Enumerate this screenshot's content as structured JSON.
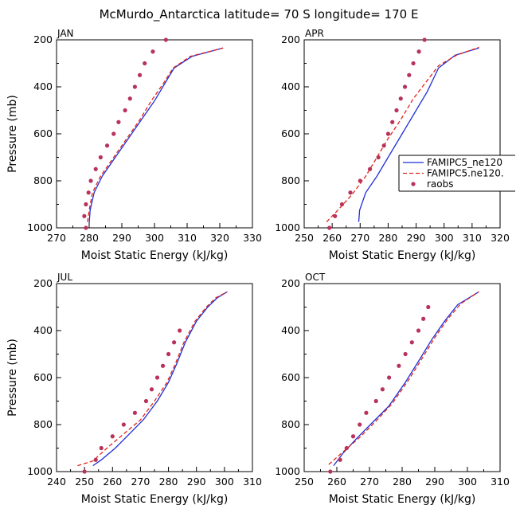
{
  "figure": {
    "title": "McMurdo_Antarctica  latitude= 70 S longitude= 170 E"
  },
  "legend": {
    "entries": [
      {
        "label": "FAMIPC5_ne120",
        "style": "solid",
        "color": "#1f2fd6"
      },
      {
        "label": "FAMIPC5.ne120.",
        "style": "dashed",
        "color": "#e0241c"
      },
      {
        "label": "raobs",
        "style": "marker",
        "color": "#b8325a"
      }
    ]
  },
  "chart_data": [
    {
      "type": "line",
      "month": "JAN",
      "xlabel": "Moist Static Energy (kJ/kg)",
      "ylabel": "Pressure (mb)",
      "xlim": [
        270,
        330
      ],
      "ylim": [
        1000,
        200
      ],
      "xticks": [
        270,
        280,
        290,
        300,
        310,
        320,
        330
      ],
      "yticks": [
        200,
        400,
        600,
        800,
        1000
      ],
      "series": [
        {
          "name": "FAMIPC5_ne120",
          "style": "solid",
          "color": "#1f2fd6",
          "x": [
            280.0,
            280.3,
            281.5,
            284.0,
            288.0,
            292.0,
            296.0,
            300.0,
            303.0,
            306.0,
            311.5,
            321.0
          ],
          "y": [
            980,
            925,
            850,
            780,
            700,
            620,
            540,
            460,
            390,
            320,
            270,
            235
          ]
        },
        {
          "name": "FAMIPC5.ne120.",
          "style": "dashed",
          "color": "#e0241c",
          "x": [
            279.5,
            280.0,
            281.0,
            283.5,
            287.5,
            291.5,
            295.5,
            299.0,
            302.5,
            305.7,
            311.0,
            321.0
          ],
          "y": [
            975,
            925,
            850,
            780,
            700,
            620,
            540,
            460,
            390,
            320,
            270,
            235
          ]
        },
        {
          "name": "raobs",
          "style": "marker",
          "color": "#b8325a",
          "x": [
            279.0,
            278.5,
            279.0,
            279.8,
            280.5,
            282.0,
            283.5,
            285.5,
            287.5,
            289.0,
            291.0,
            292.5,
            294.0,
            295.5,
            297.0,
            299.5,
            303.5
          ],
          "y": [
            1000,
            950,
            900,
            850,
            800,
            750,
            700,
            650,
            600,
            550,
            500,
            450,
            400,
            350,
            300,
            250,
            200
          ]
        }
      ]
    },
    {
      "type": "line",
      "month": "APR",
      "xlabel": "Moist Static Energy (kJ/kg)",
      "ylabel": "",
      "xlim": [
        250,
        320
      ],
      "ylim": [
        1000,
        200
      ],
      "xticks": [
        250,
        260,
        270,
        280,
        290,
        300,
        310,
        320
      ],
      "yticks": [
        200,
        400,
        600,
        800,
        1000
      ],
      "series": [
        {
          "name": "FAMIPC5_ne120",
          "style": "solid",
          "color": "#1f2fd6",
          "x": [
            269.5,
            269.8,
            272.0,
            276.0,
            280.0,
            285.0,
            290.0,
            294.0,
            298.0,
            304.0,
            312.5
          ],
          "y": [
            975,
            925,
            850,
            780,
            700,
            600,
            500,
            420,
            320,
            265,
            235
          ]
        },
        {
          "name": "FAMIPC5.ne120.",
          "style": "dashed",
          "color": "#e0241c",
          "x": [
            258.0,
            262.0,
            267.0,
            272.0,
            276.0,
            280.0,
            284.5,
            289.0,
            293.5,
            298.0,
            304.5,
            312.5
          ],
          "y": [
            975,
            925,
            860,
            780,
            700,
            620,
            540,
            450,
            380,
            310,
            265,
            232
          ]
        },
        {
          "name": "raobs",
          "style": "marker",
          "color": "#b8325a",
          "x": [
            259.0,
            261.0,
            263.5,
            266.5,
            270.0,
            273.5,
            276.5,
            278.5,
            280.0,
            281.5,
            283.0,
            284.5,
            286.0,
            287.5,
            289.0,
            291.0,
            293.0
          ],
          "y": [
            1000,
            950,
            900,
            850,
            800,
            750,
            700,
            650,
            600,
            550,
            500,
            450,
            400,
            350,
            300,
            250,
            200
          ]
        }
      ]
    },
    {
      "type": "line",
      "month": "JUL",
      "xlabel": "Moist Static Energy (kJ/kg)",
      "ylabel": "Pressure (mb)",
      "xlim": [
        240,
        310
      ],
      "ylim": [
        1000,
        200
      ],
      "xticks": [
        240,
        250,
        260,
        270,
        280,
        290,
        300,
        310
      ],
      "yticks": [
        200,
        400,
        600,
        800,
        1000
      ],
      "series": [
        {
          "name": "FAMIPC5_ne120",
          "style": "solid",
          "color": "#1f2fd6",
          "x": [
            253.0,
            256.0,
            261.0,
            266.0,
            271.0,
            276.0,
            280.0,
            283.0,
            286.0,
            290.0,
            294.0,
            297.5,
            301.0
          ],
          "y": [
            975,
            950,
            900,
            840,
            780,
            700,
            620,
            540,
            450,
            360,
            300,
            260,
            235
          ]
        },
        {
          "name": "FAMIPC5.ne120.",
          "style": "dashed",
          "color": "#e0241c",
          "x": [
            247.5,
            253.0,
            258.0,
            264.0,
            270.0,
            275.0,
            279.5,
            282.5,
            285.5,
            289.5,
            293.5,
            297.0,
            301.0
          ],
          "y": [
            975,
            955,
            900,
            840,
            780,
            700,
            620,
            540,
            450,
            360,
            300,
            260,
            235
          ]
        },
        {
          "name": "raobs",
          "style": "marker",
          "color": "#b8325a",
          "x": [
            250.0,
            254.0,
            256.0,
            260.0,
            264.0,
            268.0,
            272.0,
            274.0,
            276.0,
            278.0,
            280.0,
            282.0,
            284.0
          ],
          "y": [
            1000,
            950,
            900,
            850,
            800,
            750,
            700,
            650,
            600,
            550,
            500,
            450,
            400
          ]
        }
      ]
    },
    {
      "type": "line",
      "month": "OCT",
      "xlabel": "Moist Static Energy (kJ/kg)",
      "ylabel": "",
      "xlim": [
        250,
        310
      ],
      "ylim": [
        1000,
        200
      ],
      "xticks": [
        250,
        260,
        270,
        280,
        290,
        300,
        310
      ],
      "yticks": [
        200,
        400,
        600,
        800,
        1000
      ],
      "series": [
        {
          "name": "FAMIPC5_ne120",
          "style": "solid",
          "color": "#1f2fd6",
          "x": [
            259.0,
            262.0,
            266.0,
            271.0,
            276.0,
            281.0,
            285.5,
            289.0,
            293.0,
            297.0,
            303.5
          ],
          "y": [
            975,
            920,
            860,
            790,
            720,
            620,
            520,
            440,
            360,
            290,
            235
          ]
        },
        {
          "name": "FAMIPC5.ne120.",
          "style": "dashed",
          "color": "#e0241c",
          "x": [
            257.5,
            262.0,
            267.0,
            272.0,
            277.0,
            282.0,
            286.5,
            290.0,
            294.0,
            298.0,
            303.5
          ],
          "y": [
            970,
            915,
            855,
            785,
            710,
            610,
            510,
            430,
            350,
            285,
            235
          ]
        },
        {
          "name": "raobs",
          "style": "marker",
          "color": "#b8325a",
          "x": [
            258.0,
            261.0,
            263.0,
            265.0,
            267.0,
            269.0,
            272.0,
            274.0,
            276.0,
            279.0,
            281.0,
            283.0,
            285.0,
            286.5,
            288.0
          ],
          "y": [
            1000,
            950,
            900,
            850,
            800,
            750,
            700,
            650,
            600,
            550,
            500,
            450,
            400,
            350,
            300
          ]
        }
      ]
    }
  ]
}
